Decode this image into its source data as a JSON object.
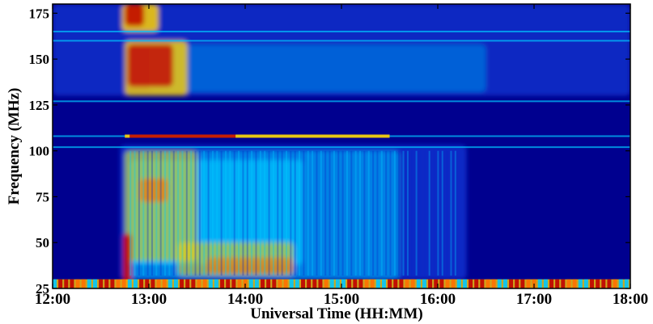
{
  "chart_data": {
    "type": "heatmap",
    "title": "",
    "xlabel": "Universal Time (HH:MM)",
    "ylabel": "Frequency (MHz)",
    "x_ticks": [
      "12:00",
      "13:00",
      "14:00",
      "15:00",
      "16:00",
      "17:00",
      "18:00"
    ],
    "x_tick_hours": [
      12,
      13,
      14,
      15,
      16,
      17,
      18
    ],
    "xlim_hours": [
      12,
      18
    ],
    "y_ticks": [
      25,
      50,
      75,
      100,
      125,
      150,
      175
    ],
    "ylim": [
      25,
      180
    ],
    "colormap": "jet",
    "colors": {
      "background": "#00008f",
      "low": "#0a2cc8",
      "mid": "#00c8ff",
      "high": "#ffd000",
      "peak": "#c00000"
    },
    "features": {
      "burst_start_hour": 12.75,
      "burst_peak_hours": [
        12.75,
        13.4
      ],
      "decay_end_hour": 16.3,
      "strong_lf_band_mhz": [
        25,
        30
      ],
      "blocked_band_mhz": [
        112,
        127
      ],
      "interference_lines_mhz": [
        102,
        108,
        127,
        160,
        165
      ]
    }
  }
}
